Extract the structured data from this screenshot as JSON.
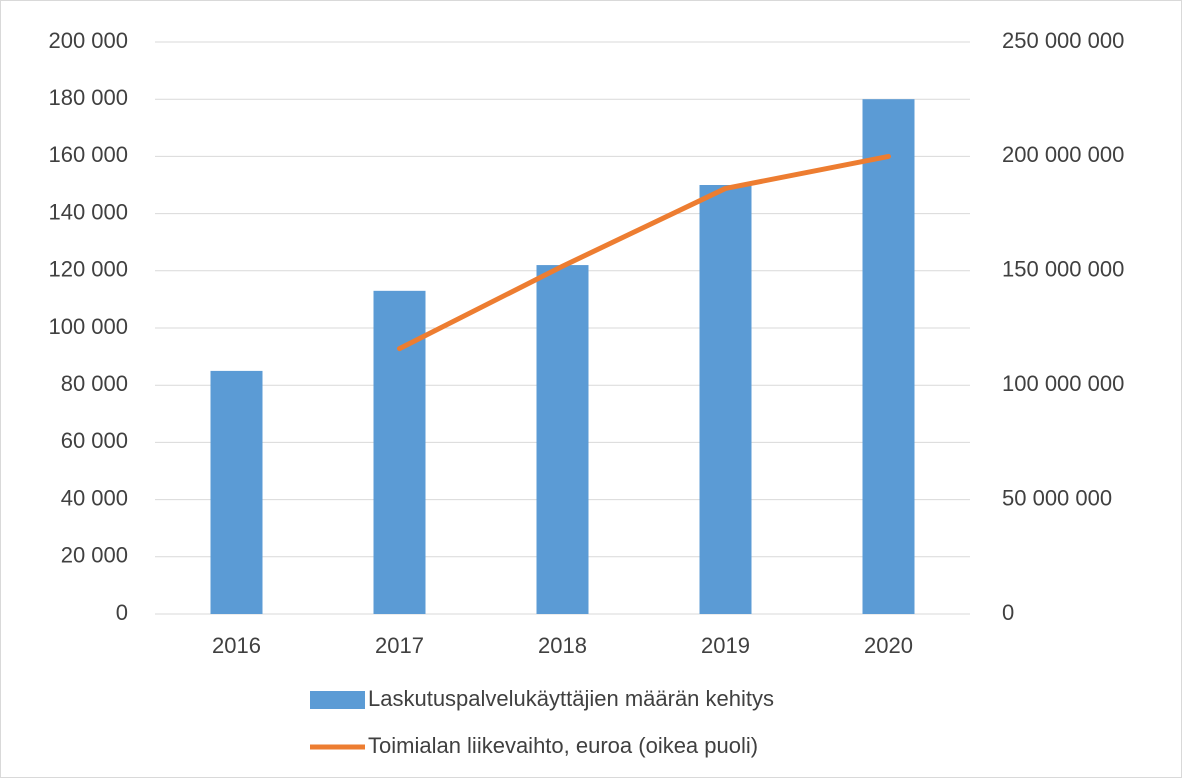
{
  "chart_data": {
    "type": "bar-line",
    "categories": [
      "2016",
      "2017",
      "2018",
      "2019",
      "2020"
    ],
    "series": [
      {
        "name": "Laskutuspalvelukäyttäjien määrän kehitys",
        "type": "bar",
        "color": "#5b9bd5",
        "axis": "y",
        "values": [
          85000,
          113000,
          122000,
          150000,
          180000
        ]
      },
      {
        "name": "Toimialan liikevaihto, euroa (oikea puoli)",
        "type": "line",
        "color": "#ed7d31",
        "axis": "y2",
        "values": [
          null,
          116000000,
          152000000,
          186000000,
          200000000
        ]
      }
    ],
    "ylim": [
      0,
      200000
    ],
    "yticks": [
      0,
      {
        "value": 20000,
        "label": "20 000"
      },
      {
        "value": 40000,
        "label": "40 000"
      },
      {
        "value": 60000,
        "label": "60 000"
      },
      {
        "value": 80000,
        "label": "80 000"
      },
      {
        "value": 100000,
        "label": "100 000"
      },
      {
        "value": 120000,
        "label": "120 000"
      },
      {
        "value": 140000,
        "label": "140 000"
      },
      {
        "value": 160000,
        "label": "160 000"
      },
      {
        "value": 180000,
        "label": "180 000"
      },
      {
        "value": 200000,
        "label": "200 000"
      }
    ],
    "y2lim": [
      0,
      250000000
    ],
    "y2ticks": [
      0,
      {
        "value": 50000000,
        "label": "50 000 000"
      },
      {
        "value": 100000000,
        "label": "100 000 000"
      },
      {
        "value": 150000000,
        "label": "150 000 000"
      },
      {
        "value": 200000000,
        "label": "200 000 000"
      },
      {
        "value": 250000000,
        "label": "250 000 000"
      }
    ],
    "grid": true,
    "legend": "bottom"
  }
}
